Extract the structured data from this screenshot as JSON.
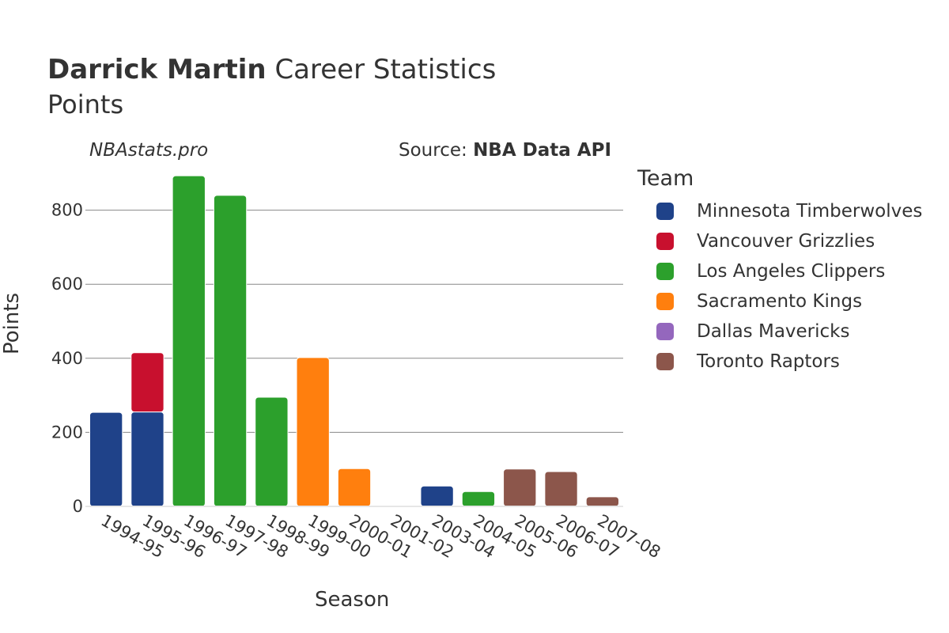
{
  "header": {
    "player_name": "Darrick Martin",
    "title_rest": "Career Statistics",
    "subtitle": "Points",
    "watermark": "NBAstats.pro",
    "source_prefix": "Source:",
    "source_name": "NBA Data API"
  },
  "legend": {
    "title": "Team",
    "items": [
      {
        "label": "Minnesota Timberwolves",
        "color": "#1f4289"
      },
      {
        "label": "Vancouver Grizzlies",
        "color": "#c8102e"
      },
      {
        "label": "Los Angeles Clippers",
        "color": "#2ca02c"
      },
      {
        "label": "Sacramento Kings",
        "color": "#ff7f0e"
      },
      {
        "label": "Dallas Mavericks",
        "color": "#9467bd"
      },
      {
        "label": "Toronto Raptors",
        "color": "#8c564b"
      }
    ]
  },
  "chart_data": {
    "type": "bar",
    "stacked": true,
    "title": "Darrick Martin Career Statistics",
    "subtitle": "Points",
    "xlabel": "Season",
    "ylabel": "Points",
    "ylim": [
      0,
      900
    ],
    "yticks": [
      0,
      200,
      400,
      600,
      800
    ],
    "grid": true,
    "legend_position": "right",
    "categories": [
      "1994-95",
      "1995-96",
      "1996-97",
      "1997-98",
      "1998-99",
      "1999-00",
      "2000-01",
      "2001-02",
      "2003-04",
      "2004-05",
      "2005-06",
      "2006-07",
      "2007-08"
    ],
    "series": [
      {
        "name": "Minnesota Timberwolves",
        "color": "#1f4289",
        "values": [
          254,
          255,
          0,
          0,
          0,
          0,
          0,
          0,
          55,
          0,
          0,
          0,
          0
        ]
      },
      {
        "name": "Vancouver Grizzlies",
        "color": "#c8102e",
        "values": [
          0,
          160,
          0,
          0,
          0,
          0,
          0,
          0,
          0,
          0,
          0,
          0,
          0
        ]
      },
      {
        "name": "Los Angeles Clippers",
        "color": "#2ca02c",
        "values": [
          0,
          0,
          893,
          840,
          295,
          0,
          0,
          0,
          0,
          40,
          0,
          0,
          0
        ]
      },
      {
        "name": "Sacramento Kings",
        "color": "#ff7f0e",
        "values": [
          0,
          0,
          0,
          0,
          0,
          402,
          102,
          0,
          0,
          0,
          0,
          0,
          0
        ]
      },
      {
        "name": "Dallas Mavericks",
        "color": "#9467bd",
        "values": [
          0,
          0,
          0,
          0,
          0,
          0,
          0,
          2,
          0,
          0,
          0,
          0,
          0
        ]
      },
      {
        "name": "Toronto Raptors",
        "color": "#8c564b",
        "values": [
          0,
          0,
          0,
          0,
          0,
          0,
          0,
          0,
          0,
          0,
          101,
          94,
          26
        ]
      }
    ]
  }
}
